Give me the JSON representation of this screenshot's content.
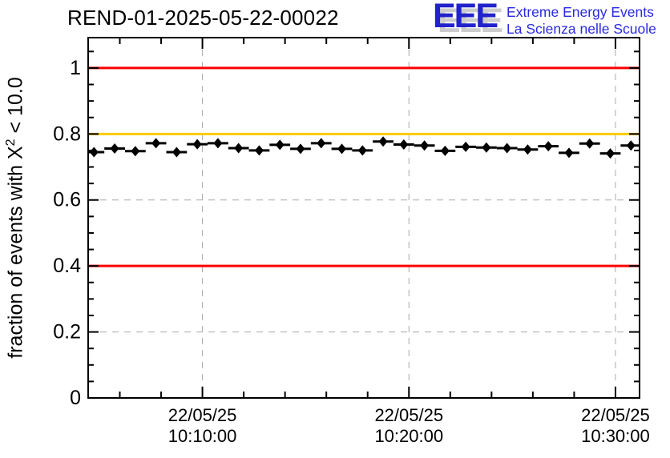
{
  "header": {
    "title": "REND-01-2025-05-22-00022",
    "logo": {
      "acronym": "EEE",
      "line1": "Extreme Energy Events",
      "line2": "La Scienza nelle Scuole",
      "letter_color": "#2222cc",
      "text_color": "#2a2ae0",
      "shadow_color": "#cccccc"
    }
  },
  "chart_data": {
    "type": "scatter",
    "title": "REND-01-2025-05-22-00022",
    "xlabel": "",
    "ylabel": "fraction of events with X² < 10.0",
    "ylabel_parts": {
      "prefix": "fraction of events with X",
      "sup": "2",
      "suffix": " < 10.0"
    },
    "ylim": [
      0,
      1.092
    ],
    "x_range": [
      "10:04:28",
      "10:31:10"
    ],
    "x_major_ticks": [
      {
        "date": "22/05/25",
        "time": "10:10:00"
      },
      {
        "date": "22/05/25",
        "time": "10:20:00"
      },
      {
        "date": "22/05/25",
        "time": "10:30:00"
      }
    ],
    "x_minor_step_min": 2,
    "y_major_ticks": [
      0,
      0.2,
      0.4,
      0.6,
      0.8,
      1
    ],
    "y_tick_labels": [
      "0",
      "0.2",
      "0.4",
      "0.6",
      "0.8",
      "1"
    ],
    "y_minor_step": 0.05,
    "grid": {
      "show": true,
      "style": "dashed",
      "color": "#aaaaaa"
    },
    "legend_position": "none",
    "reference_lines": [
      {
        "y": 1.0,
        "color": "#ff0000"
      },
      {
        "y": 0.8,
        "color": "#ffcc00"
      },
      {
        "y": 0.4,
        "color": "#ff0000"
      }
    ],
    "marker": {
      "shape": "filled-diamond",
      "color": "#000000",
      "x_error_minutes": 0.5
    },
    "points": [
      {
        "time": "10:04:45",
        "value": 0.745
      },
      {
        "time": "10:05:45",
        "value": 0.756
      },
      {
        "time": "10:06:45",
        "value": 0.748
      },
      {
        "time": "10:07:45",
        "value": 0.772
      },
      {
        "time": "10:08:45",
        "value": 0.745
      },
      {
        "time": "10:09:45",
        "value": 0.769
      },
      {
        "time": "10:10:45",
        "value": 0.772
      },
      {
        "time": "10:11:45",
        "value": 0.757
      },
      {
        "time": "10:12:45",
        "value": 0.75
      },
      {
        "time": "10:13:45",
        "value": 0.767
      },
      {
        "time": "10:14:45",
        "value": 0.755
      },
      {
        "time": "10:15:45",
        "value": 0.772
      },
      {
        "time": "10:16:45",
        "value": 0.755
      },
      {
        "time": "10:17:45",
        "value": 0.75
      },
      {
        "time": "10:18:45",
        "value": 0.777
      },
      {
        "time": "10:19:45",
        "value": 0.768
      },
      {
        "time": "10:20:45",
        "value": 0.765
      },
      {
        "time": "10:21:45",
        "value": 0.749
      },
      {
        "time": "10:22:45",
        "value": 0.761
      },
      {
        "time": "10:23:45",
        "value": 0.759
      },
      {
        "time": "10:24:45",
        "value": 0.757
      },
      {
        "time": "10:25:45",
        "value": 0.753
      },
      {
        "time": "10:26:45",
        "value": 0.763
      },
      {
        "time": "10:27:45",
        "value": 0.743
      },
      {
        "time": "10:28:45",
        "value": 0.771
      },
      {
        "time": "10:29:45",
        "value": 0.741
      },
      {
        "time": "10:30:45",
        "value": 0.765
      }
    ]
  }
}
